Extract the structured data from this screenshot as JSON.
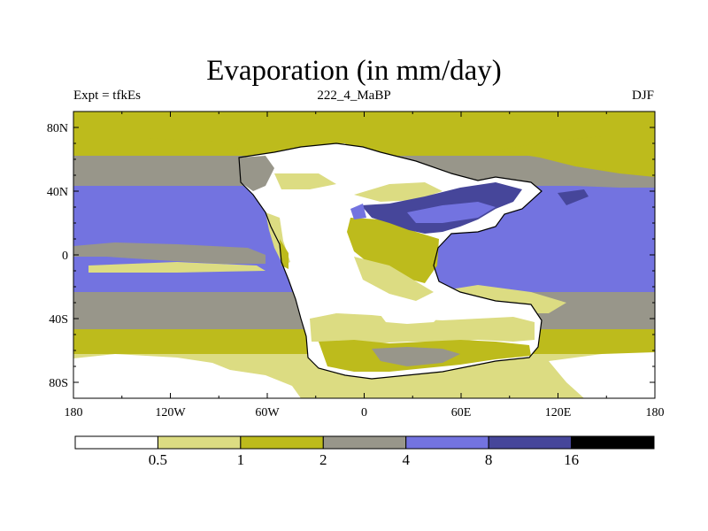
{
  "title": "Evaporation (in mm/day)",
  "left_label": "Expt = tfkEs",
  "center_label": "222_4_MaBP",
  "right_label": "DJF",
  "lon_ticks": [
    "180",
    "120W",
    "60W",
    "0",
    "60E",
    "120E",
    "180"
  ],
  "lat_ticks": [
    "80N",
    "40N",
    "0",
    "40S",
    "80S"
  ],
  "colorbar": {
    "labels": [
      "0.5",
      "1",
      "2",
      "4",
      "8",
      "16"
    ],
    "colors": [
      "#ffffff",
      "#dcdc82",
      "#bdbb1c",
      "#98968a",
      "#7373e0",
      "#46469a",
      "#000000"
    ]
  },
  "colors": {
    "white": "#ffffff",
    "light_yellow": "#dcdc82",
    "olive": "#bdbb1c",
    "gray": "#98968a",
    "blue": "#7373e0",
    "dark_blue": "#46469a"
  }
}
